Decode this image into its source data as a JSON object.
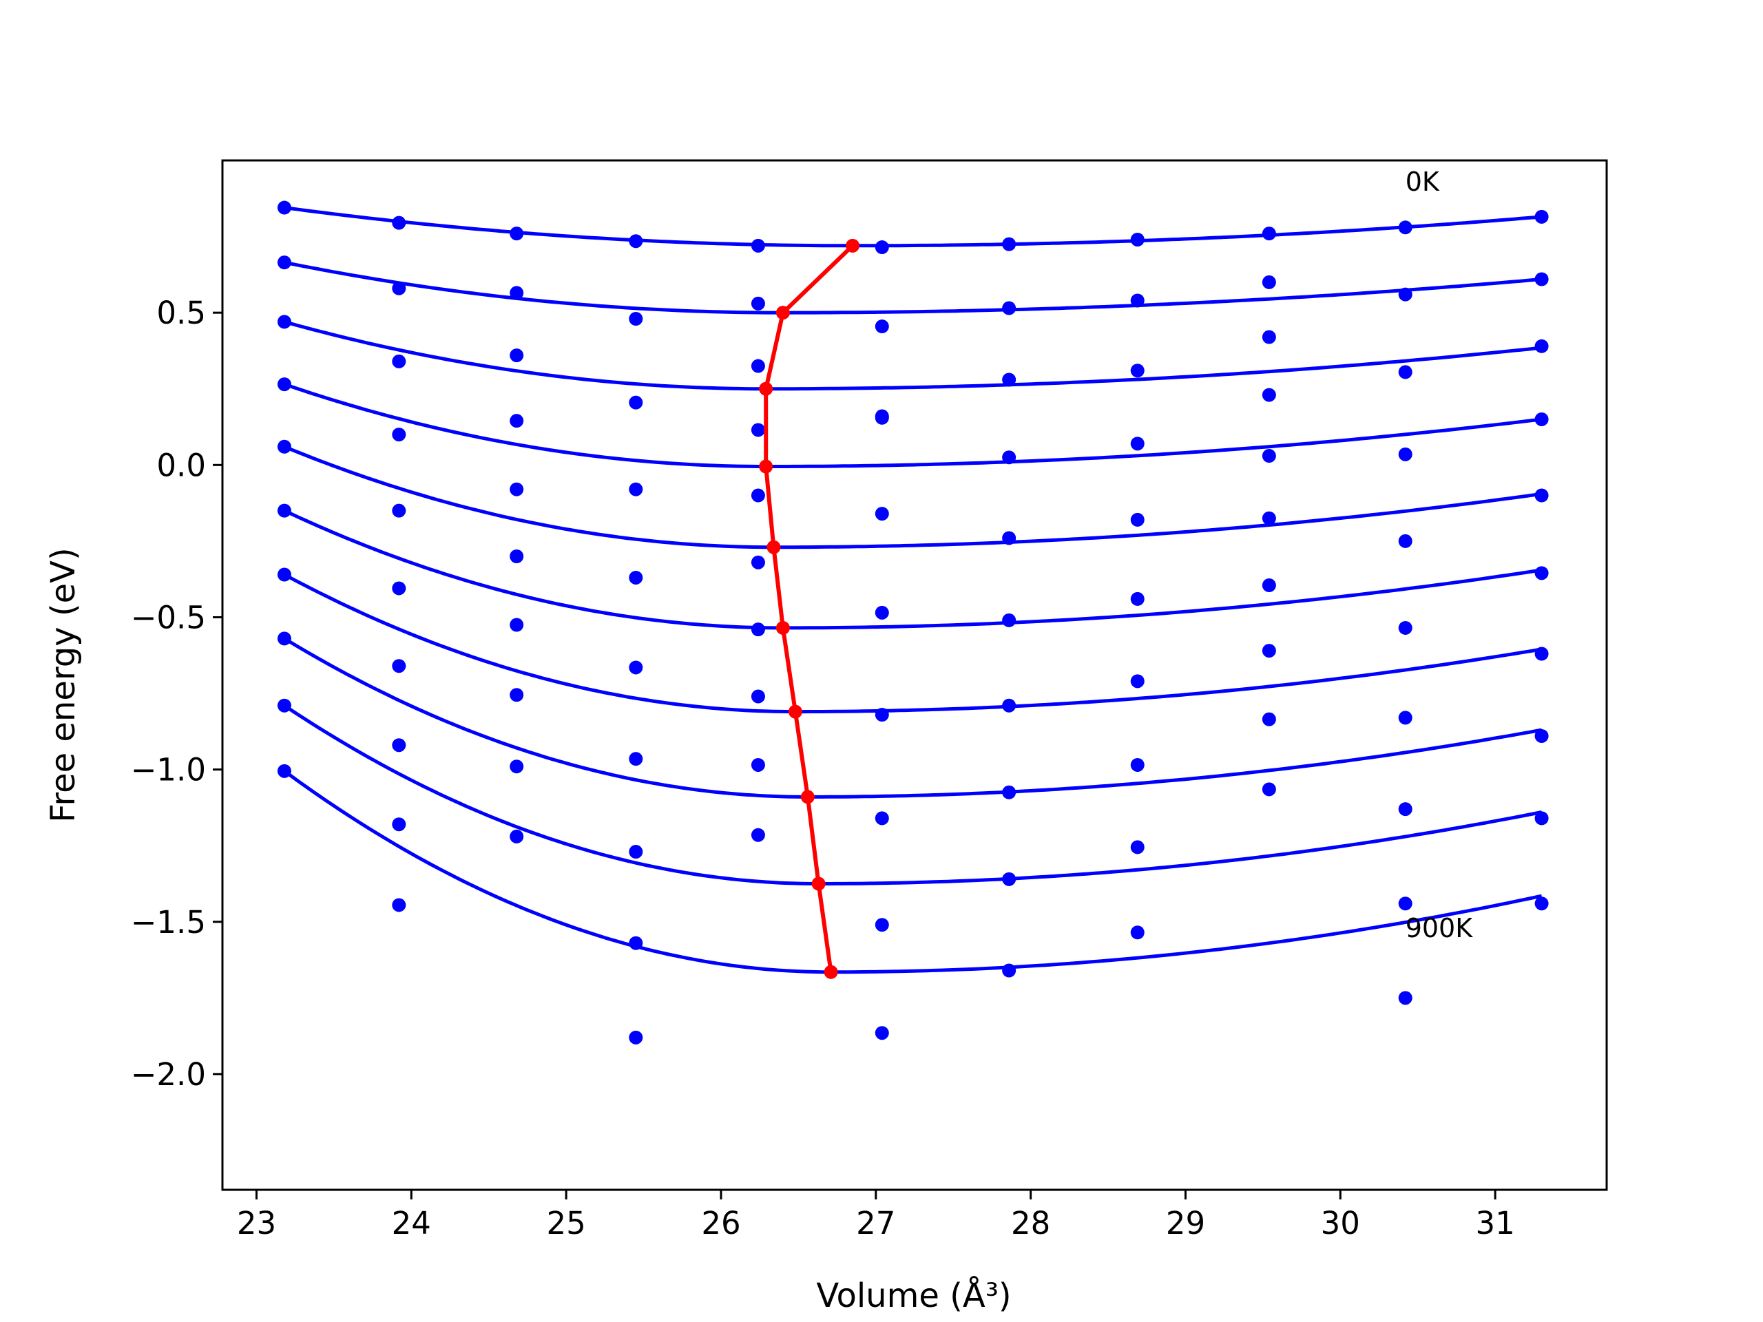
{
  "chart_data": {
    "type": "scatter",
    "title": "",
    "xlabel": "Volume (Å³)",
    "ylabel": "Free energy (eV)",
    "xlim": [
      22.78,
      31.72
    ],
    "ylim": [
      -2.38,
      1.0
    ],
    "x_ticks": [
      23,
      24,
      25,
      26,
      27,
      28,
      29,
      30,
      31
    ],
    "x_tick_labels": [
      "23",
      "24",
      "25",
      "26",
      "27",
      "28",
      "29",
      "30",
      "31"
    ],
    "y_ticks": [
      0.5,
      0.0,
      -0.5,
      -1.0,
      -1.5,
      -2.0
    ],
    "y_tick_labels": [
      "0.5",
      "0.0",
      "−0.5",
      "−1.0",
      "−1.5",
      "−2.0"
    ],
    "grid": false,
    "legend": "none",
    "annotations": [
      {
        "text": "0K",
        "x": 30.42,
        "y": 0.9
      },
      {
        "text": "900K",
        "x": 30.42,
        "y": -1.55
      }
    ],
    "colors": {
      "points": "#0000ff",
      "fit_curves": "#0000ff",
      "minimum_path": "#ff0000"
    },
    "volumes": [
      23.18,
      23.92,
      24.68,
      25.45,
      26.24,
      27.04,
      27.86,
      28.69,
      29.54,
      30.42,
      31.3
    ],
    "scatter_series": [
      [
        0.845,
        0.795,
        0.76,
        0.735,
        0.72,
        0.715,
        0.725,
        0.74,
        0.76,
        0.78,
        0.815
      ],
      [
        0.665,
        0.58,
        0.565,
        0.48,
        0.53,
        0.455,
        0.515,
        0.54,
        0.6,
        0.56,
        0.61
      ],
      [
        0.47,
        0.34,
        0.36,
        0.205,
        0.325,
        0.155,
        0.28,
        0.31,
        0.42,
        0.305,
        0.39
      ],
      [
        0.265,
        0.1,
        0.145,
        -0.08,
        0.115,
        0.16,
        0.025,
        0.07,
        0.23,
        0.035,
        0.15
      ],
      [
        0.06,
        -0.15,
        -0.08,
        -0.37,
        -0.1,
        -0.16,
        -0.24,
        -0.18,
        0.03,
        -0.25,
        -0.1
      ],
      [
        -0.15,
        -0.405,
        -0.3,
        -0.665,
        -0.32,
        -0.485,
        -0.51,
        -0.44,
        -0.175,
        -0.535,
        -0.355
      ],
      [
        -0.36,
        -0.66,
        -0.525,
        -0.965,
        -0.54,
        -0.82,
        -0.79,
        -0.71,
        -0.395,
        -0.83,
        -0.62
      ],
      [
        -0.57,
        -0.92,
        -0.755,
        -1.27,
        -0.76,
        -1.16,
        -1.075,
        -0.985,
        -0.61,
        -1.13,
        -0.89
      ],
      [
        -0.79,
        -1.18,
        -0.99,
        -1.57,
        -0.985,
        -1.51,
        -1.36,
        -1.255,
        -0.835,
        -1.44,
        -1.16
      ],
      [
        -1.005,
        -1.445,
        -1.22,
        -1.88,
        -1.215,
        -1.865,
        -1.66,
        -1.535,
        -1.065,
        -1.75,
        -1.44
      ]
    ],
    "fit_curves": [
      {
        "x_min": 26.85,
        "y_min": 0.72,
        "y_left": 0.845,
        "y_right": 0.815
      },
      {
        "x_min": 26.4,
        "y_min": 0.5,
        "y_left": 0.665,
        "y_right": 0.61
      },
      {
        "x_min": 26.29,
        "y_min": 0.25,
        "y_left": 0.47,
        "y_right": 0.385
      },
      {
        "x_min": 26.29,
        "y_min": -0.005,
        "y_left": 0.265,
        "y_right": 0.15
      },
      {
        "x_min": 26.34,
        "y_min": -0.27,
        "y_left": 0.06,
        "y_right": -0.095
      },
      {
        "x_min": 26.4,
        "y_min": -0.535,
        "y_left": -0.15,
        "y_right": -0.345
      },
      {
        "x_min": 26.48,
        "y_min": -0.81,
        "y_left": -0.36,
        "y_right": -0.605
      },
      {
        "x_min": 26.56,
        "y_min": -1.09,
        "y_left": -0.57,
        "y_right": -0.87
      },
      {
        "x_min": 26.63,
        "y_min": -1.375,
        "y_left": -0.79,
        "y_right": -1.14
      },
      {
        "x_min": 26.71,
        "y_min": -1.665,
        "y_left": -1.005,
        "y_right": -1.415
      }
    ],
    "minimum_path": {
      "x": [
        26.85,
        26.4,
        26.29,
        26.29,
        26.34,
        26.4,
        26.48,
        26.56,
        26.63,
        26.71
      ],
      "y": [
        0.72,
        0.5,
        0.25,
        -0.005,
        -0.27,
        -0.535,
        -0.81,
        -1.09,
        -1.375,
        -1.665
      ]
    }
  }
}
